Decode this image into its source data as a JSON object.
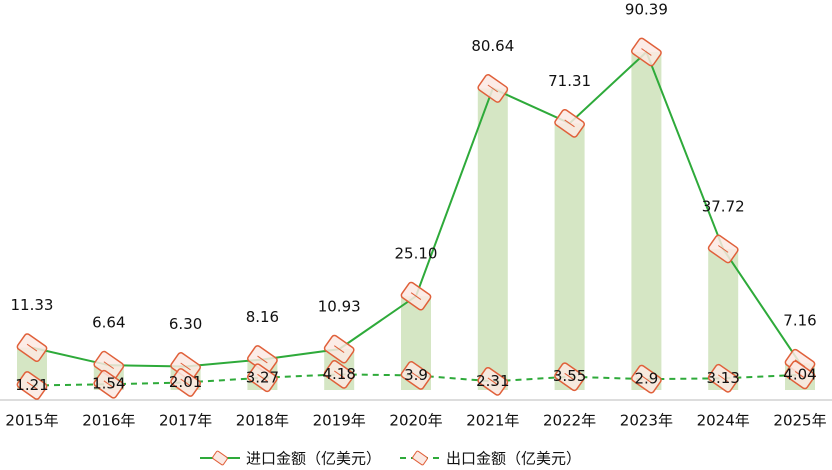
{
  "chart_data": {
    "type": "combo",
    "categories": [
      "2015年",
      "2016年",
      "2017年",
      "2018年",
      "2019年",
      "2020年",
      "2021年",
      "2022年",
      "2023年",
      "2024年",
      "2025年"
    ],
    "series": [
      {
        "name": "进口金额（亿美元）",
        "color": "#2eaa3a",
        "bar_color": "#d5e6c4",
        "line": "solid",
        "values": [
          11.33,
          6.64,
          6.3,
          8.16,
          10.93,
          25.1,
          80.64,
          71.31,
          90.39,
          37.72,
          7.16
        ],
        "value_labels": [
          "11.33",
          "6.64",
          "6.30",
          "8.16",
          "10.93",
          "25.10",
          "80.64",
          "71.31",
          "90.39",
          "37.72",
          "7.16"
        ]
      },
      {
        "name": "出口金额（亿美元）",
        "color": "#2eaa3a",
        "line": "dashed",
        "values": [
          1.21,
          1.54,
          2.01,
          3.27,
          4.18,
          3.9,
          2.31,
          3.55,
          2.9,
          3.13,
          4.04
        ]
      }
    ],
    "marker_color": "#e0603a"
  }
}
